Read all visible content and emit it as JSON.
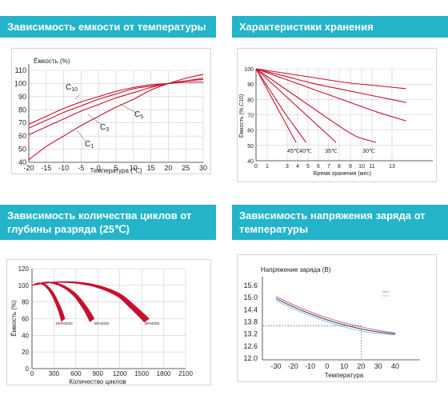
{
  "panels": {
    "p1": {
      "title": "Зависимость емкости от температуры"
    },
    "p2": {
      "title": "Характеристики хранения"
    },
    "p3": {
      "title": "Зависимость количества циклов от глубины разряда (25℃)"
    },
    "p4": {
      "title": "Зависимость напряжения заряда от температуры"
    }
  },
  "chart_data": [
    {
      "type": "line",
      "title": "",
      "xlabel": "Температура (℃)",
      "ylabel": "Ёмкость (%)",
      "xlim": [
        -20,
        30
      ],
      "ylim": [
        40,
        110
      ],
      "xticks": [
        "-20",
        "-15",
        "-10",
        "-5",
        "0",
        "5",
        "10",
        "15",
        "20",
        "25",
        "30"
      ],
      "yticks": [
        "40",
        "50",
        "60",
        "70",
        "80",
        "90",
        "100",
        "110"
      ],
      "grid": true,
      "series": [
        {
          "name": "C10",
          "x": [
            -20,
            -15,
            -10,
            -5,
            0,
            5,
            10,
            15,
            20,
            25,
            30
          ],
          "y": [
            69,
            75,
            81,
            86,
            90,
            94,
            97,
            99,
            100,
            101,
            101
          ]
        },
        {
          "name": "C5",
          "x": [
            -20,
            -15,
            -10,
            -5,
            0,
            5,
            10,
            15,
            20,
            25,
            30
          ],
          "y": [
            66,
            72,
            78,
            83,
            88,
            92,
            96,
            98,
            100,
            102,
            103
          ]
        },
        {
          "name": "C3",
          "x": [
            -20,
            -15,
            -10,
            -5,
            0,
            5,
            10,
            15,
            20,
            25,
            30
          ],
          "y": [
            61,
            67,
            73,
            79,
            84,
            89,
            93,
            97,
            100,
            102,
            104
          ]
        },
        {
          "name": "C1",
          "x": [
            -20,
            -15,
            -10,
            -5,
            0,
            5,
            10,
            15,
            20,
            25,
            30
          ],
          "y": [
            42,
            52,
            60,
            68,
            75,
            82,
            88,
            95,
            100,
            104,
            107
          ]
        }
      ],
      "annotations": [
        {
          "text": "C",
          "sub": "10"
        },
        {
          "text": "C",
          "sub": "5"
        },
        {
          "text": "C",
          "sub": "3"
        },
        {
          "text": "C",
          "sub": "1"
        }
      ]
    },
    {
      "type": "line",
      "title": "",
      "xlabel": "Время хранения (мес)",
      "ylabel": "Ёмкость (%,С10)",
      "xlim": [
        0,
        15
      ],
      "ylim": [
        40,
        100
      ],
      "xticks": [
        "0",
        "1",
        "3",
        "4",
        "5",
        "6",
        "7",
        "8",
        "9",
        "10",
        "11",
        "13"
      ],
      "yticks": [
        "40",
        "50",
        "60",
        "70",
        "80",
        "90",
        "100"
      ],
      "grid": true,
      "series": [
        {
          "name": "45℃",
          "x": [
            0,
            1,
            2,
            3,
            4
          ],
          "y": [
            100,
            88,
            76,
            64,
            52
          ]
        },
        {
          "name": "40℃",
          "x": [
            0,
            1,
            2,
            3,
            4,
            5
          ],
          "y": [
            100,
            90,
            80,
            70,
            61,
            52
          ]
        },
        {
          "name": "35℃",
          "x": [
            0,
            2,
            4,
            6,
            8
          ],
          "y": [
            100,
            88,
            76,
            64,
            52
          ]
        },
        {
          "name": "30℃",
          "x": [
            0,
            2,
            4,
            6,
            8,
            10,
            12
          ],
          "y": [
            100,
            91,
            82,
            73,
            64,
            56,
            52
          ]
        },
        {
          "name": "",
          "x": [
            0,
            3,
            6,
            9,
            12,
            15
          ],
          "y": [
            100,
            93,
            86,
            79,
            72,
            66
          ]
        },
        {
          "name": "",
          "x": [
            0,
            3,
            6,
            9,
            12,
            15
          ],
          "y": [
            100,
            95,
            90,
            86,
            82,
            78
          ]
        },
        {
          "name": "",
          "x": [
            0,
            3,
            6,
            9,
            12,
            15
          ],
          "y": [
            100,
            97,
            94,
            91,
            89,
            87
          ]
        }
      ],
      "annotations": [
        "45℃",
        "40℃",
        "35℃",
        "30℃"
      ]
    },
    {
      "type": "area",
      "title": "",
      "xlabel": "Количество циклов",
      "ylabel": "Ёмкость (%)",
      "xlim": [
        0,
        2100
      ],
      "ylim": [
        0,
        120
      ],
      "xticks": [
        "0",
        "300",
        "600",
        "900",
        "1200",
        "1500",
        "1800",
        "2100"
      ],
      "yticks": [
        "0",
        "20",
        "40",
        "60",
        "80",
        "100",
        "120"
      ],
      "grid": true,
      "series": [
        {
          "name": "100%DOD",
          "x": [
            0,
            100,
            200,
            300,
            400,
            450
          ],
          "y": [
            100,
            103,
            100,
            90,
            72,
            60
          ]
        },
        {
          "name": "50%DOD",
          "x": [
            0,
            200,
            400,
            600,
            750,
            850
          ],
          "y": [
            100,
            104,
            101,
            90,
            74,
            60
          ]
        },
        {
          "name": "30%DOD",
          "x": [
            0,
            300,
            600,
            900,
            1200,
            1400,
            1600
          ],
          "y": [
            100,
            104,
            104,
            100,
            90,
            76,
            60
          ]
        }
      ],
      "annotations": [
        "100%DOD",
        "50%DOD",
        "30%DOD"
      ]
    },
    {
      "type": "line",
      "title": "Напряжение заряда (В)",
      "xlabel": "Температура",
      "ylabel": "",
      "xlim": [
        -35,
        50
      ],
      "ylim": [
        12.0,
        15.6
      ],
      "xticks": [
        "-30",
        "-20",
        "-10",
        "0",
        "10",
        "20",
        "30",
        "40"
      ],
      "yticks": [
        "12.0",
        "12.6",
        "13.2",
        "13.8",
        "14.4",
        "15.0",
        "15.6"
      ],
      "grid": false,
      "series": [
        {
          "name": "",
          "x": [
            -30,
            -20,
            -10,
            0,
            10,
            20,
            30,
            40
          ],
          "y": [
            15.05,
            14.65,
            14.3,
            14.0,
            13.75,
            13.55,
            13.38,
            13.25
          ]
        },
        {
          "name": "",
          "x": [
            -30,
            -20,
            -10,
            0,
            10,
            20,
            30,
            40
          ],
          "y": [
            14.95,
            14.55,
            14.2,
            13.9,
            13.65,
            13.45,
            13.3,
            13.2
          ]
        },
        {
          "name": "",
          "x": [
            -30,
            -20,
            -10,
            0,
            10,
            20,
            30,
            40
          ],
          "y": [
            14.85,
            14.45,
            14.1,
            13.8,
            13.55,
            13.35,
            13.22,
            13.15
          ]
        }
      ],
      "reference": {
        "y": 13.6,
        "x": 20
      }
    }
  ],
  "colors": {
    "header": "#23b4c9",
    "curve": "#c8102e",
    "grid": "#cfcfcf"
  }
}
